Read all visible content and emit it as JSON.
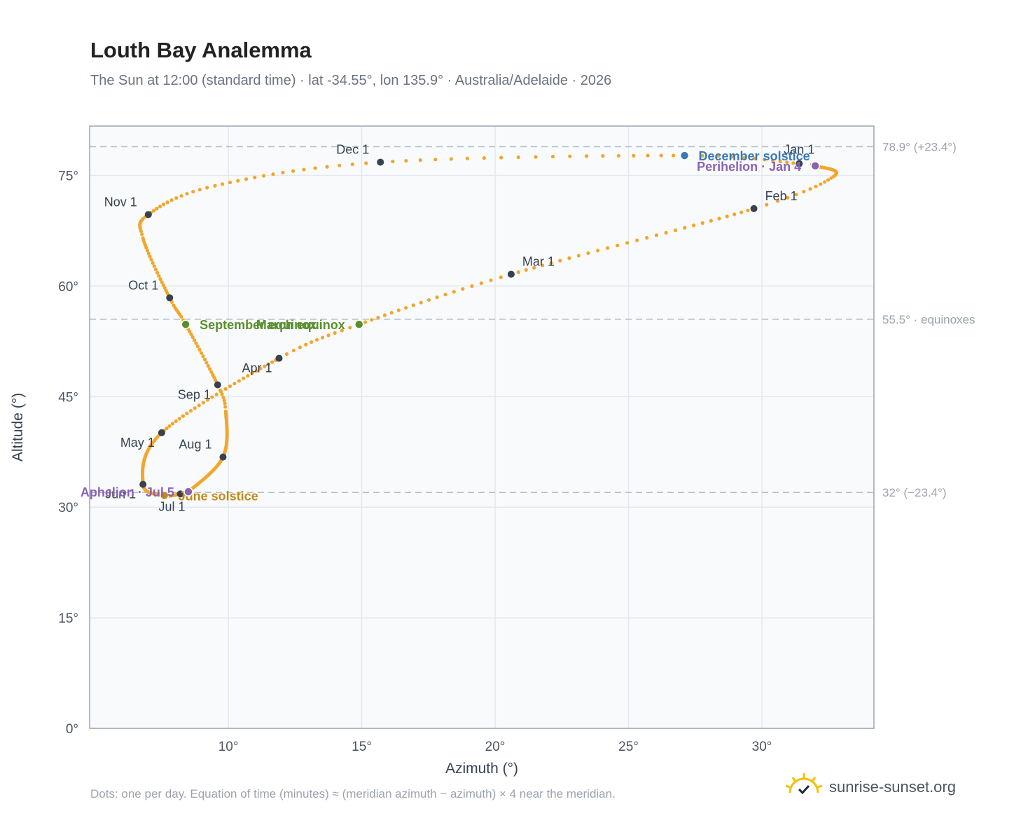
{
  "header": {
    "title": "Louth Bay Analemma",
    "subtitle": "The Sun at 12:00 (standard time) · lat -34.55°, lon 135.9° · Australia/Adelaide · 2026"
  },
  "footer": {
    "note": "Dots: one per day. Equation of time (minutes) ≈ (meridian azimuth − azimuth) × 4 near the meridian.",
    "brand": "sunrise-sunset.org"
  },
  "colors": {
    "path": "#f2a62a",
    "month_marker": "#374151",
    "equinox": "#5a8f2e",
    "december_solstice": "#3b78b8",
    "june_solstice": "#c48a1a",
    "apsis": "#8b63b5",
    "grid": "#e5e9ef",
    "plot_bg": "#f8fafc",
    "frame": "#9aa5b4",
    "ref_line": "#b4c0c8"
  },
  "chart_data": {
    "type": "scatter",
    "xlabel": "Azimuth (°)",
    "ylabel": "Altitude (°)",
    "xlim": [
      4.8,
      34.2
    ],
    "ylim": [
      0,
      81.7
    ],
    "xticks": [
      10,
      15,
      20,
      25,
      30
    ],
    "xtick_labels": [
      "10°",
      "15°",
      "20°",
      "25°",
      "30°"
    ],
    "yticks": [
      0,
      15,
      30,
      45,
      60,
      75
    ],
    "ytick_labels": [
      "0°",
      "15°",
      "30°",
      "45°",
      "60°",
      "75°"
    ],
    "grid": true,
    "series": [
      {
        "markers": "one dot per day",
        "anchor_points": [
          {
            "date": "Jan 1",
            "az": 31.4,
            "alt": 76.6
          },
          {
            "date": "Jan 4",
            "az": 32.0,
            "alt": 76.3
          },
          {
            "date": "Jan 20",
            "az": 32.7,
            "alt": 74.9
          },
          {
            "date": "Feb 1",
            "az": 29.7,
            "alt": 70.5
          },
          {
            "date": "Mar 1",
            "az": 20.6,
            "alt": 61.6
          },
          {
            "date": "Mar 20",
            "az": 14.9,
            "alt": 54.8
          },
          {
            "date": "Apr 1",
            "az": 11.9,
            "alt": 50.2
          },
          {
            "date": "May 1",
            "az": 7.5,
            "alt": 40.1
          },
          {
            "date": "Jun 1",
            "az": 6.8,
            "alt": 33.1
          },
          {
            "date": "Jun 21",
            "az": 7.6,
            "alt": 31.6
          },
          {
            "date": "Jul 1",
            "az": 8.2,
            "alt": 31.8
          },
          {
            "date": "Jul 5",
            "az": 8.5,
            "alt": 32.1
          },
          {
            "date": "Aug 1",
            "az": 9.8,
            "alt": 36.8
          },
          {
            "date": "Aug 25",
            "az": 9.9,
            "alt": 43.0
          },
          {
            "date": "Sep 1",
            "az": 9.6,
            "alt": 46.6
          },
          {
            "date": "Sep 22",
            "az": 8.4,
            "alt": 54.8
          },
          {
            "date": "Oct 1",
            "az": 7.8,
            "alt": 58.4
          },
          {
            "date": "Oct 22",
            "az": 6.8,
            "alt": 66.5
          },
          {
            "date": "Nov 1",
            "az": 7.0,
            "alt": 69.7
          },
          {
            "date": "Nov 15",
            "az": 9.5,
            "alt": 73.6
          },
          {
            "date": "Dec 1",
            "az": 15.7,
            "alt": 76.8
          },
          {
            "date": "Dec 21",
            "az": 27.1,
            "alt": 77.7
          },
          {
            "date": "Jan 1",
            "az": 31.4,
            "alt": 76.6
          }
        ]
      }
    ],
    "month_markers": [
      {
        "label": "Jan 1",
        "az": 31.4,
        "alt": 76.6,
        "label_pos": "above"
      },
      {
        "label": "Feb 1",
        "az": 29.7,
        "alt": 70.5,
        "label_pos": "above-right"
      },
      {
        "label": "Mar 1",
        "az": 20.6,
        "alt": 61.6,
        "label_pos": "above-right"
      },
      {
        "label": "Apr 1",
        "az": 11.9,
        "alt": 50.2,
        "label_pos": "below-left"
      },
      {
        "label": "May 1",
        "az": 7.5,
        "alt": 40.1,
        "label_pos": "below-left"
      },
      {
        "label": "Jun 1",
        "az": 6.8,
        "alt": 33.1,
        "label_pos": "below-left"
      },
      {
        "label": "Jul 1",
        "az": 8.2,
        "alt": 31.8,
        "label_pos": "below"
      },
      {
        "label": "Aug 1",
        "az": 9.8,
        "alt": 36.8,
        "label_pos": "above-left"
      },
      {
        "label": "Sep 1",
        "az": 9.6,
        "alt": 46.6,
        "label_pos": "below-left"
      },
      {
        "label": "Oct 1",
        "az": 7.8,
        "alt": 58.4,
        "label_pos": "above-left"
      },
      {
        "label": "Nov 1",
        "az": 7.0,
        "alt": 69.7,
        "label_pos": "above-left"
      },
      {
        "label": "Dec 1",
        "az": 15.7,
        "alt": 76.8,
        "label_pos": "above-left"
      }
    ],
    "events": [
      {
        "label": "December solstice",
        "az": 27.1,
        "alt": 77.7,
        "color_key": "december_solstice",
        "label_pos": "right"
      },
      {
        "label": "Perihelion · Jan 4",
        "az": 32.0,
        "alt": 76.3,
        "color_key": "apsis",
        "label_pos": "left"
      },
      {
        "label": "March equinox",
        "az": 14.9,
        "alt": 54.8,
        "color_key": "equinox",
        "label_pos": "left"
      },
      {
        "label": "September equinox",
        "az": 8.4,
        "alt": 54.8,
        "color_key": "equinox",
        "label_pos": "right"
      },
      {
        "label": "June solstice",
        "az": 7.6,
        "alt": 31.6,
        "color_key": "june_solstice",
        "label_pos": "right"
      },
      {
        "label": "Aphelion · Jul 5",
        "az": 8.5,
        "alt": 32.1,
        "color_key": "apsis",
        "label_pos": "left"
      }
    ],
    "reference_lines": [
      {
        "alt": 78.9,
        "label": "78.9° (+23.4°)"
      },
      {
        "alt": 55.5,
        "label": "55.5° · equinoxes"
      },
      {
        "alt": 32.0,
        "label": "32° (−23.4°)"
      }
    ]
  }
}
